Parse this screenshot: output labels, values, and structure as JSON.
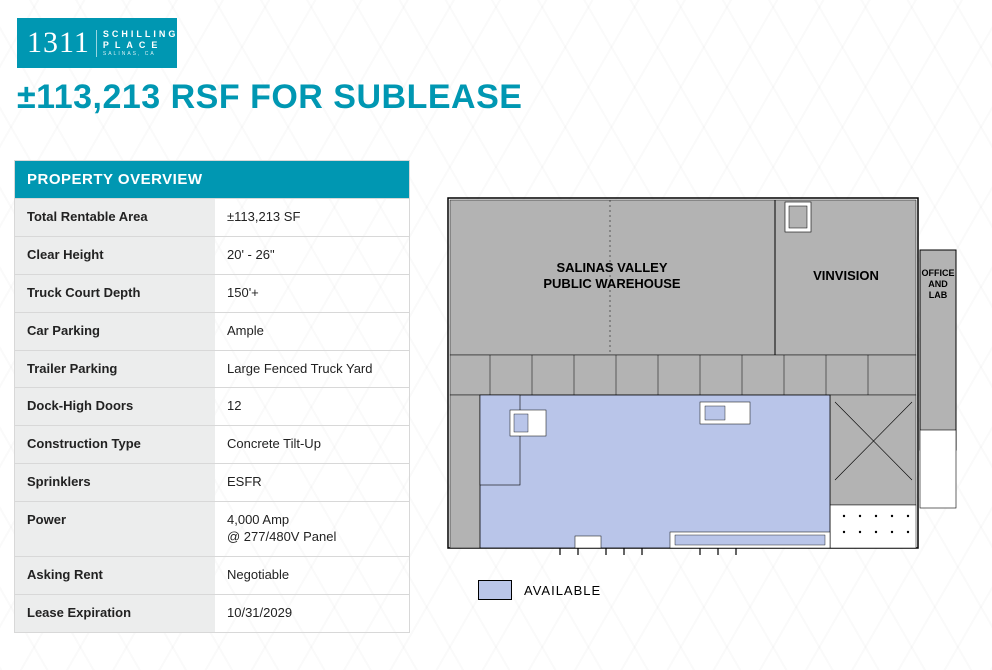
{
  "logo": {
    "number": "1311",
    "line1": "SCHILLING",
    "line2": "PLACE",
    "line3": "SALINAS, CA",
    "bg_color": "#0097b2"
  },
  "headline": "±113,213 RSF FOR SUBLEASE",
  "overview": {
    "title": "PROPERTY OVERVIEW",
    "rows": [
      {
        "key": "Total Rentable Area",
        "val": "±113,213 SF"
      },
      {
        "key": "Clear Height",
        "val": "20' - 26\""
      },
      {
        "key": "Truck Court Depth",
        "val": "150'+"
      },
      {
        "key": "Car Parking",
        "val": "Ample"
      },
      {
        "key": "Trailer Parking",
        "val": "Large Fenced Truck Yard"
      },
      {
        "key": "Dock-High Doors",
        "val": "12"
      },
      {
        "key": "Construction Type",
        "val": "Concrete Tilt-Up"
      },
      {
        "key": "Sprinklers",
        "val": "ESFR"
      },
      {
        "key": "Power",
        "val": "4,000 Amp\n@ 277/480V Panel"
      },
      {
        "key": "Asking Rent",
        "val": "Negotiable"
      },
      {
        "key": "Lease Expiration",
        "val": "10/31/2029"
      }
    ]
  },
  "floorplan": {
    "outline_color": "#000000",
    "tenant_fill": "#b3b3b3",
    "available_fill": "#b9c5e9",
    "labels": {
      "salinas1": "SALINAS VALLEY",
      "salinas2": "PUBLIC WAREHOUSE",
      "vinvision": "VINVISION",
      "office1": "OFFICE",
      "office2": "AND",
      "office3": "LAB"
    },
    "label_fontsize": 13,
    "office_fontsize": 10
  },
  "legend": {
    "swatch_color": "#b9c5e9",
    "label": "AVAILABLE"
  }
}
